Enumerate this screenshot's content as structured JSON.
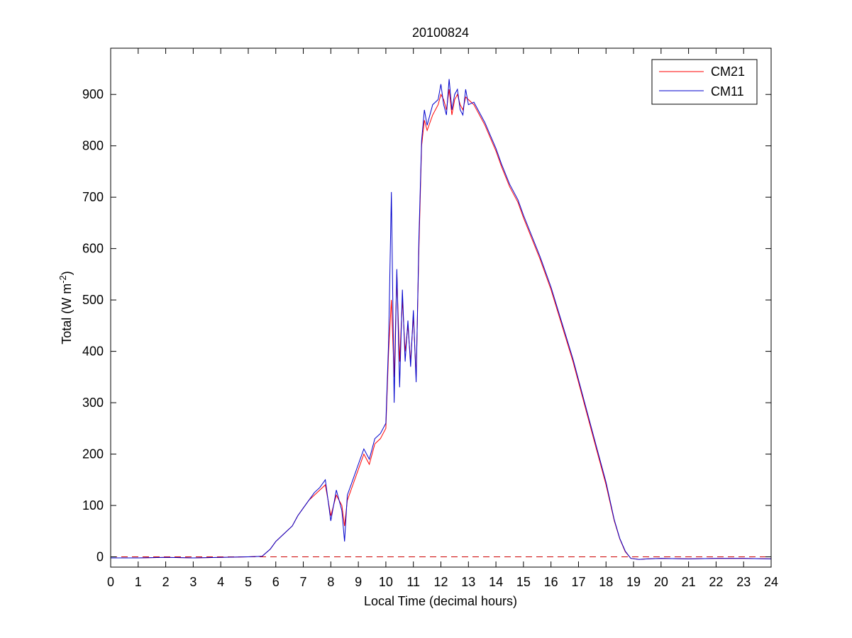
{
  "chart_data": {
    "type": "line",
    "title": "20100824",
    "xlabel": "Local Time (decimal hours)",
    "ylabel": {
      "base": "Total (W m",
      "superscript": "-2",
      "suffix": ")"
    },
    "xlim": [
      0,
      24
    ],
    "ylim": [
      -20,
      990
    ],
    "xticks": [
      0,
      1,
      2,
      3,
      4,
      5,
      6,
      7,
      8,
      9,
      10,
      11,
      12,
      13,
      14,
      15,
      16,
      17,
      18,
      19,
      20,
      21,
      22,
      23,
      24
    ],
    "yticks": [
      0,
      100,
      200,
      300,
      400,
      500,
      600,
      700,
      800,
      900
    ],
    "grid": false,
    "legend_position": "top-right",
    "reference_line": {
      "y": 0,
      "style": "dashed",
      "color": "#cc0000"
    },
    "series": [
      {
        "name": "CM21",
        "color": "#ff0000",
        "x": [
          0,
          1,
          2,
          3,
          4,
          5,
          5.5,
          5.8,
          6.0,
          6.3,
          6.6,
          6.8,
          7.0,
          7.2,
          7.4,
          7.6,
          7.8,
          8.0,
          8.2,
          8.4,
          8.5,
          8.6,
          8.8,
          9.0,
          9.2,
          9.4,
          9.6,
          9.8,
          10.0,
          10.1,
          10.2,
          10.3,
          10.4,
          10.5,
          10.6,
          10.7,
          10.8,
          10.9,
          11.0,
          11.1,
          11.2,
          11.3,
          11.4,
          11.5,
          11.7,
          11.9,
          12.0,
          12.1,
          12.2,
          12.3,
          12.4,
          12.5,
          12.6,
          12.7,
          12.8,
          12.9,
          13.0,
          13.2,
          13.4,
          13.6,
          13.8,
          14.0,
          14.2,
          14.5,
          14.8,
          15.0,
          15.3,
          15.6,
          16.0,
          16.4,
          16.8,
          17.2,
          17.6,
          18.0,
          18.3,
          18.5,
          18.7,
          18.9,
          19.2,
          19.5,
          20,
          21,
          22,
          23,
          24
        ],
        "y": [
          -2,
          -2,
          -1,
          -2,
          -1,
          0,
          1,
          15,
          30,
          45,
          60,
          80,
          95,
          110,
          120,
          130,
          140,
          80,
          120,
          100,
          60,
          110,
          140,
          170,
          200,
          180,
          220,
          230,
          250,
          400,
          500,
          350,
          550,
          380,
          500,
          400,
          450,
          380,
          470,
          350,
          600,
          800,
          850,
          830,
          860,
          880,
          900,
          890,
          870,
          910,
          860,
          890,
          900,
          880,
          870,
          895,
          890,
          880,
          860,
          840,
          815,
          790,
          760,
          720,
          690,
          660,
          620,
          580,
          520,
          450,
          380,
          300,
          220,
          140,
          70,
          35,
          10,
          -3,
          -5,
          -4,
          -3,
          -4,
          -3,
          -3,
          -4
        ]
      },
      {
        "name": "CM11",
        "color": "#0000cc",
        "x": [
          0,
          1,
          2,
          3,
          4,
          5,
          5.5,
          5.8,
          6.0,
          6.3,
          6.6,
          6.8,
          7.0,
          7.2,
          7.4,
          7.6,
          7.8,
          8.0,
          8.2,
          8.4,
          8.5,
          8.6,
          8.8,
          9.0,
          9.2,
          9.4,
          9.6,
          9.8,
          10.0,
          10.1,
          10.2,
          10.3,
          10.4,
          10.5,
          10.6,
          10.7,
          10.8,
          10.9,
          11.0,
          11.1,
          11.2,
          11.3,
          11.4,
          11.5,
          11.7,
          11.9,
          12.0,
          12.1,
          12.2,
          12.3,
          12.4,
          12.5,
          12.6,
          12.7,
          12.8,
          12.9,
          13.0,
          13.2,
          13.4,
          13.6,
          13.8,
          14.0,
          14.2,
          14.5,
          14.8,
          15.0,
          15.3,
          15.6,
          16.0,
          16.4,
          16.8,
          17.2,
          17.6,
          18.0,
          18.3,
          18.5,
          18.7,
          18.9,
          19.2,
          19.5,
          20,
          21,
          22,
          23,
          24
        ],
        "y": [
          -2,
          -2,
          -1,
          -2,
          -1,
          0,
          1,
          15,
          30,
          45,
          60,
          80,
          95,
          110,
          125,
          135,
          150,
          70,
          130,
          90,
          30,
          120,
          150,
          180,
          210,
          190,
          230,
          240,
          260,
          420,
          710,
          300,
          560,
          330,
          520,
          380,
          460,
          370,
          480,
          340,
          620,
          810,
          870,
          840,
          880,
          890,
          920,
          880,
          860,
          930,
          870,
          900,
          910,
          870,
          860,
          910,
          880,
          885,
          865,
          845,
          820,
          795,
          765,
          725,
          695,
          665,
          625,
          585,
          525,
          455,
          385,
          305,
          225,
          145,
          72,
          36,
          11,
          -3,
          -5,
          -4,
          -3,
          -4,
          -3,
          -3,
          -4
        ]
      }
    ]
  }
}
